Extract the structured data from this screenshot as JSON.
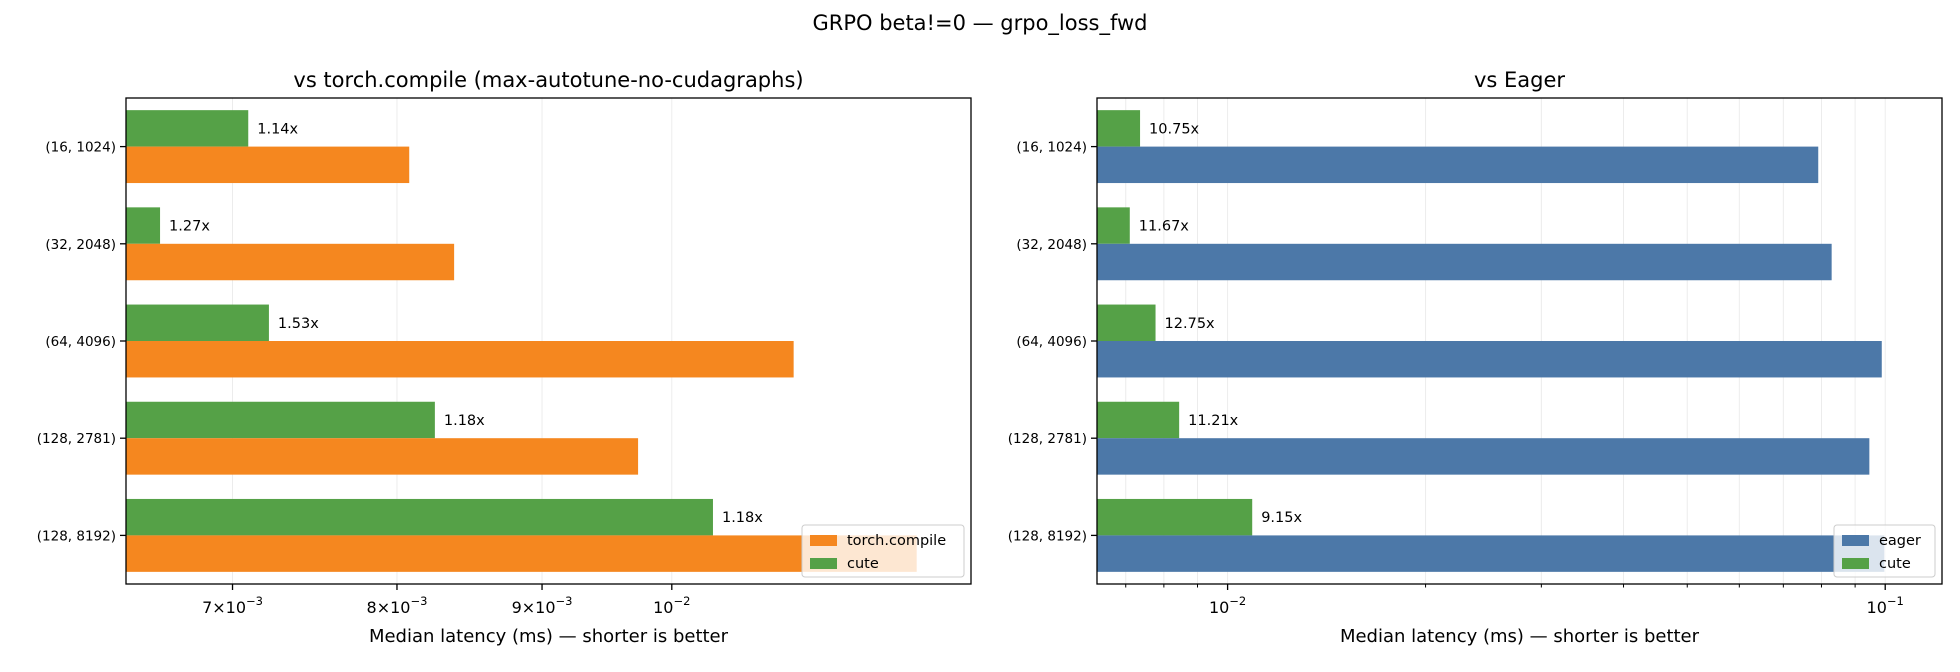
{
  "suptitle": "GRPO beta!=0 — grpo_loss_fwd",
  "chart_data": [
    {
      "type": "bar",
      "orientation": "horizontal",
      "title": "vs torch.compile (max-autotune-no-cudagraphs)",
      "xlabel": "Median latency (ms) — shorter is better",
      "xscale": "log",
      "xlim": [
        0.00642,
        0.01275
      ],
      "xticks": [
        {
          "value": 0.007,
          "mantissa": "7",
          "exp": "−3"
        },
        {
          "value": 0.008,
          "mantissa": "8",
          "exp": "−3"
        },
        {
          "value": 0.009,
          "mantissa": "9",
          "exp": "−3"
        },
        {
          "value": 0.01,
          "mantissa": "10",
          "exp": "−2"
        }
      ],
      "categories": [
        "(16, 1024)",
        "(32, 2048)",
        "(64, 4096)",
        "(128, 2781)",
        "(128, 8192)"
      ],
      "series": [
        {
          "name": "torch.compile",
          "color": "#f5871f",
          "values": [
            0.00808,
            0.00838,
            0.01104,
            0.00973,
            0.0122
          ]
        },
        {
          "name": "cute",
          "color": "#55a147",
          "values": [
            0.00709,
            0.0066,
            0.00721,
            0.00825,
            0.01034
          ]
        }
      ],
      "bar_labels": [
        "1.14x",
        "1.27x",
        "1.53x",
        "1.18x",
        "1.18x"
      ],
      "legend": {
        "position": "lower-right",
        "entries": [
          "torch.compile",
          "cute"
        ]
      },
      "grid": true
    },
    {
      "type": "bar",
      "orientation": "horizontal",
      "title": "vs Eager",
      "xlabel": "Median latency (ms) — shorter is better",
      "xscale": "log",
      "xlim": [
        0.00633,
        0.122
      ],
      "xticks": [
        {
          "value": 0.01,
          "mantissa": "10",
          "exp": "−2"
        },
        {
          "value": 0.1,
          "mantissa": "10",
          "exp": "−1"
        }
      ],
      "categories": [
        "(16, 1024)",
        "(32, 2048)",
        "(64, 4096)",
        "(128, 2781)",
        "(128, 8192)"
      ],
      "series": [
        {
          "name": "eager",
          "color": "#4c78a8",
          "values": [
            0.0791,
            0.0829,
            0.0988,
            0.0946,
            0.0997
          ]
        },
        {
          "name": "cute",
          "color": "#55a147",
          "values": [
            0.00736,
            0.0071,
            0.00777,
            0.00844,
            0.0109
          ]
        }
      ],
      "bar_labels": [
        "10.75x",
        "11.67x",
        "12.75x",
        "11.21x",
        "9.15x"
      ],
      "legend": {
        "position": "lower-right",
        "entries": [
          "eager",
          "cute"
        ]
      },
      "grid": true
    }
  ]
}
